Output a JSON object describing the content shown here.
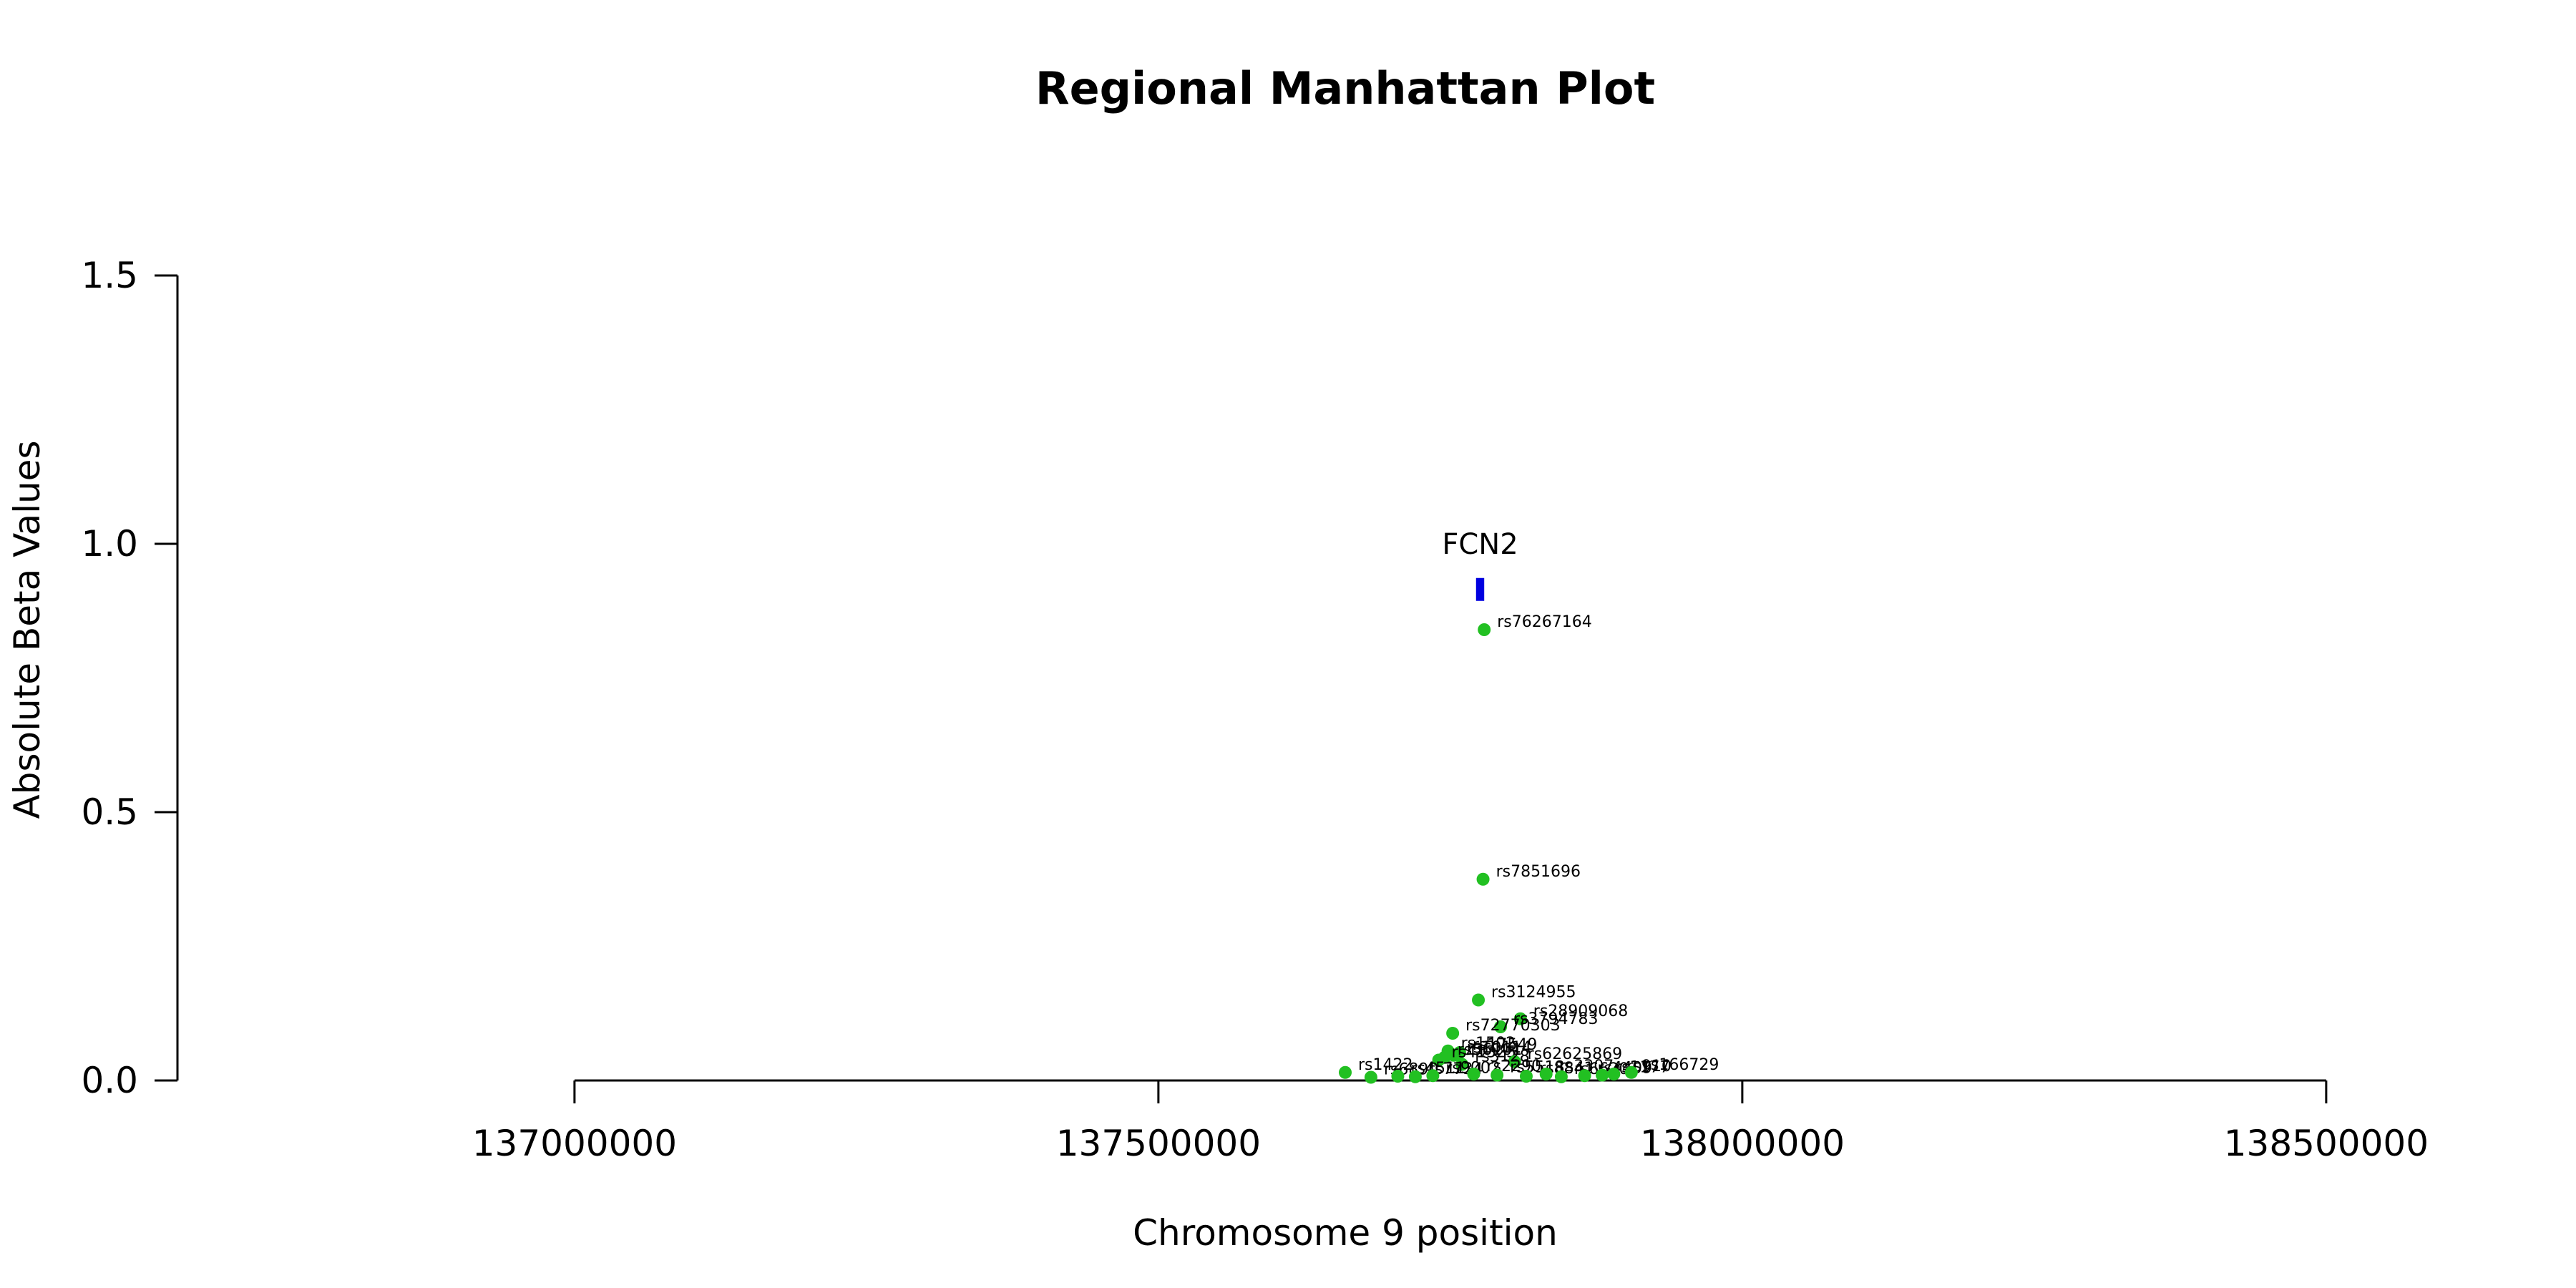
{
  "chart_data": {
    "type": "scatter",
    "title": "Regional Manhattan Plot",
    "xlabel": "Chromosome 9 position",
    "ylabel": "Absolute Beta Values",
    "xlim": [
      136660000,
      138660000
    ],
    "ylim": [
      0,
      1.5
    ],
    "x_ticks": [
      {
        "value": 137000000,
        "label": "137000000"
      },
      {
        "value": 137500000,
        "label": "137500000"
      },
      {
        "value": 138000000,
        "label": "138000000"
      },
      {
        "value": 138500000,
        "label": "138500000"
      }
    ],
    "y_ticks": [
      {
        "value": 0.0,
        "label": "0.0"
      },
      {
        "value": 0.5,
        "label": "0.5"
      },
      {
        "value": 1.0,
        "label": "1.0"
      },
      {
        "value": 1.5,
        "label": "1.5"
      }
    ],
    "grid": false,
    "point_color": "#22c022",
    "gene_color": "#0000e0",
    "genes": [
      {
        "name": "FCN2",
        "start": 137772000,
        "end": 137779000,
        "y": 0.915
      }
    ],
    "points": [
      {
        "id": "rs76267164",
        "x": 137779000,
        "y": 0.84
      },
      {
        "id": "rs7851696",
        "x": 137778000,
        "y": 0.375
      },
      {
        "id": "rs3124955",
        "x": 137774000,
        "y": 0.15
      },
      {
        "id": "rs28909068",
        "x": 137810000,
        "y": 0.115
      },
      {
        "id": "rs3794783",
        "x": 137793000,
        "y": 0.1
      },
      {
        "id": "rs72770303",
        "x": 137752000,
        "y": 0.088
      },
      {
        "id": "rs1502",
        "x": 137748000,
        "y": 0.055
      },
      {
        "id": "rs17549",
        "x": 137758000,
        "y": 0.052
      },
      {
        "id": "rs10114",
        "x": 137753000,
        "y": 0.047
      },
      {
        "id": "rs56101",
        "x": 137745000,
        "y": 0.043
      },
      {
        "id": "rs41325",
        "x": 137740000,
        "y": 0.038
      },
      {
        "id": "rs62625869",
        "x": 137805000,
        "y": 0.035
      },
      {
        "id": "rs3128",
        "x": 137760000,
        "y": 0.03
      },
      {
        "id": "rs1422",
        "x": 137660000,
        "y": 0.015
      },
      {
        "id": "rs6890",
        "x": 137682000,
        "y": 0.006
      },
      {
        "id": "rs4511",
        "x": 137705000,
        "y": 0.008
      },
      {
        "id": "rs7734",
        "x": 137720000,
        "y": 0.007
      },
      {
        "id": "rs9002",
        "x": 137735000,
        "y": 0.009
      },
      {
        "id": "rs2290",
        "x": 137770000,
        "y": 0.012
      },
      {
        "id": "rs5518",
        "x": 137790000,
        "y": 0.01
      },
      {
        "id": "rs8841",
        "x": 137815000,
        "y": 0.008
      },
      {
        "id": "rs3307",
        "x": 137832000,
        "y": 0.012
      },
      {
        "id": "rs6620",
        "x": 137845000,
        "y": 0.007
      },
      {
        "id": "rs4409",
        "x": 137865000,
        "y": 0.009
      },
      {
        "id": "rs1177",
        "x": 137880000,
        "y": 0.01
      },
      {
        "id": "rs910",
        "x": 137890000,
        "y": 0.012
      },
      {
        "id": "rs166729",
        "x": 137905000,
        "y": 0.015
      }
    ]
  }
}
